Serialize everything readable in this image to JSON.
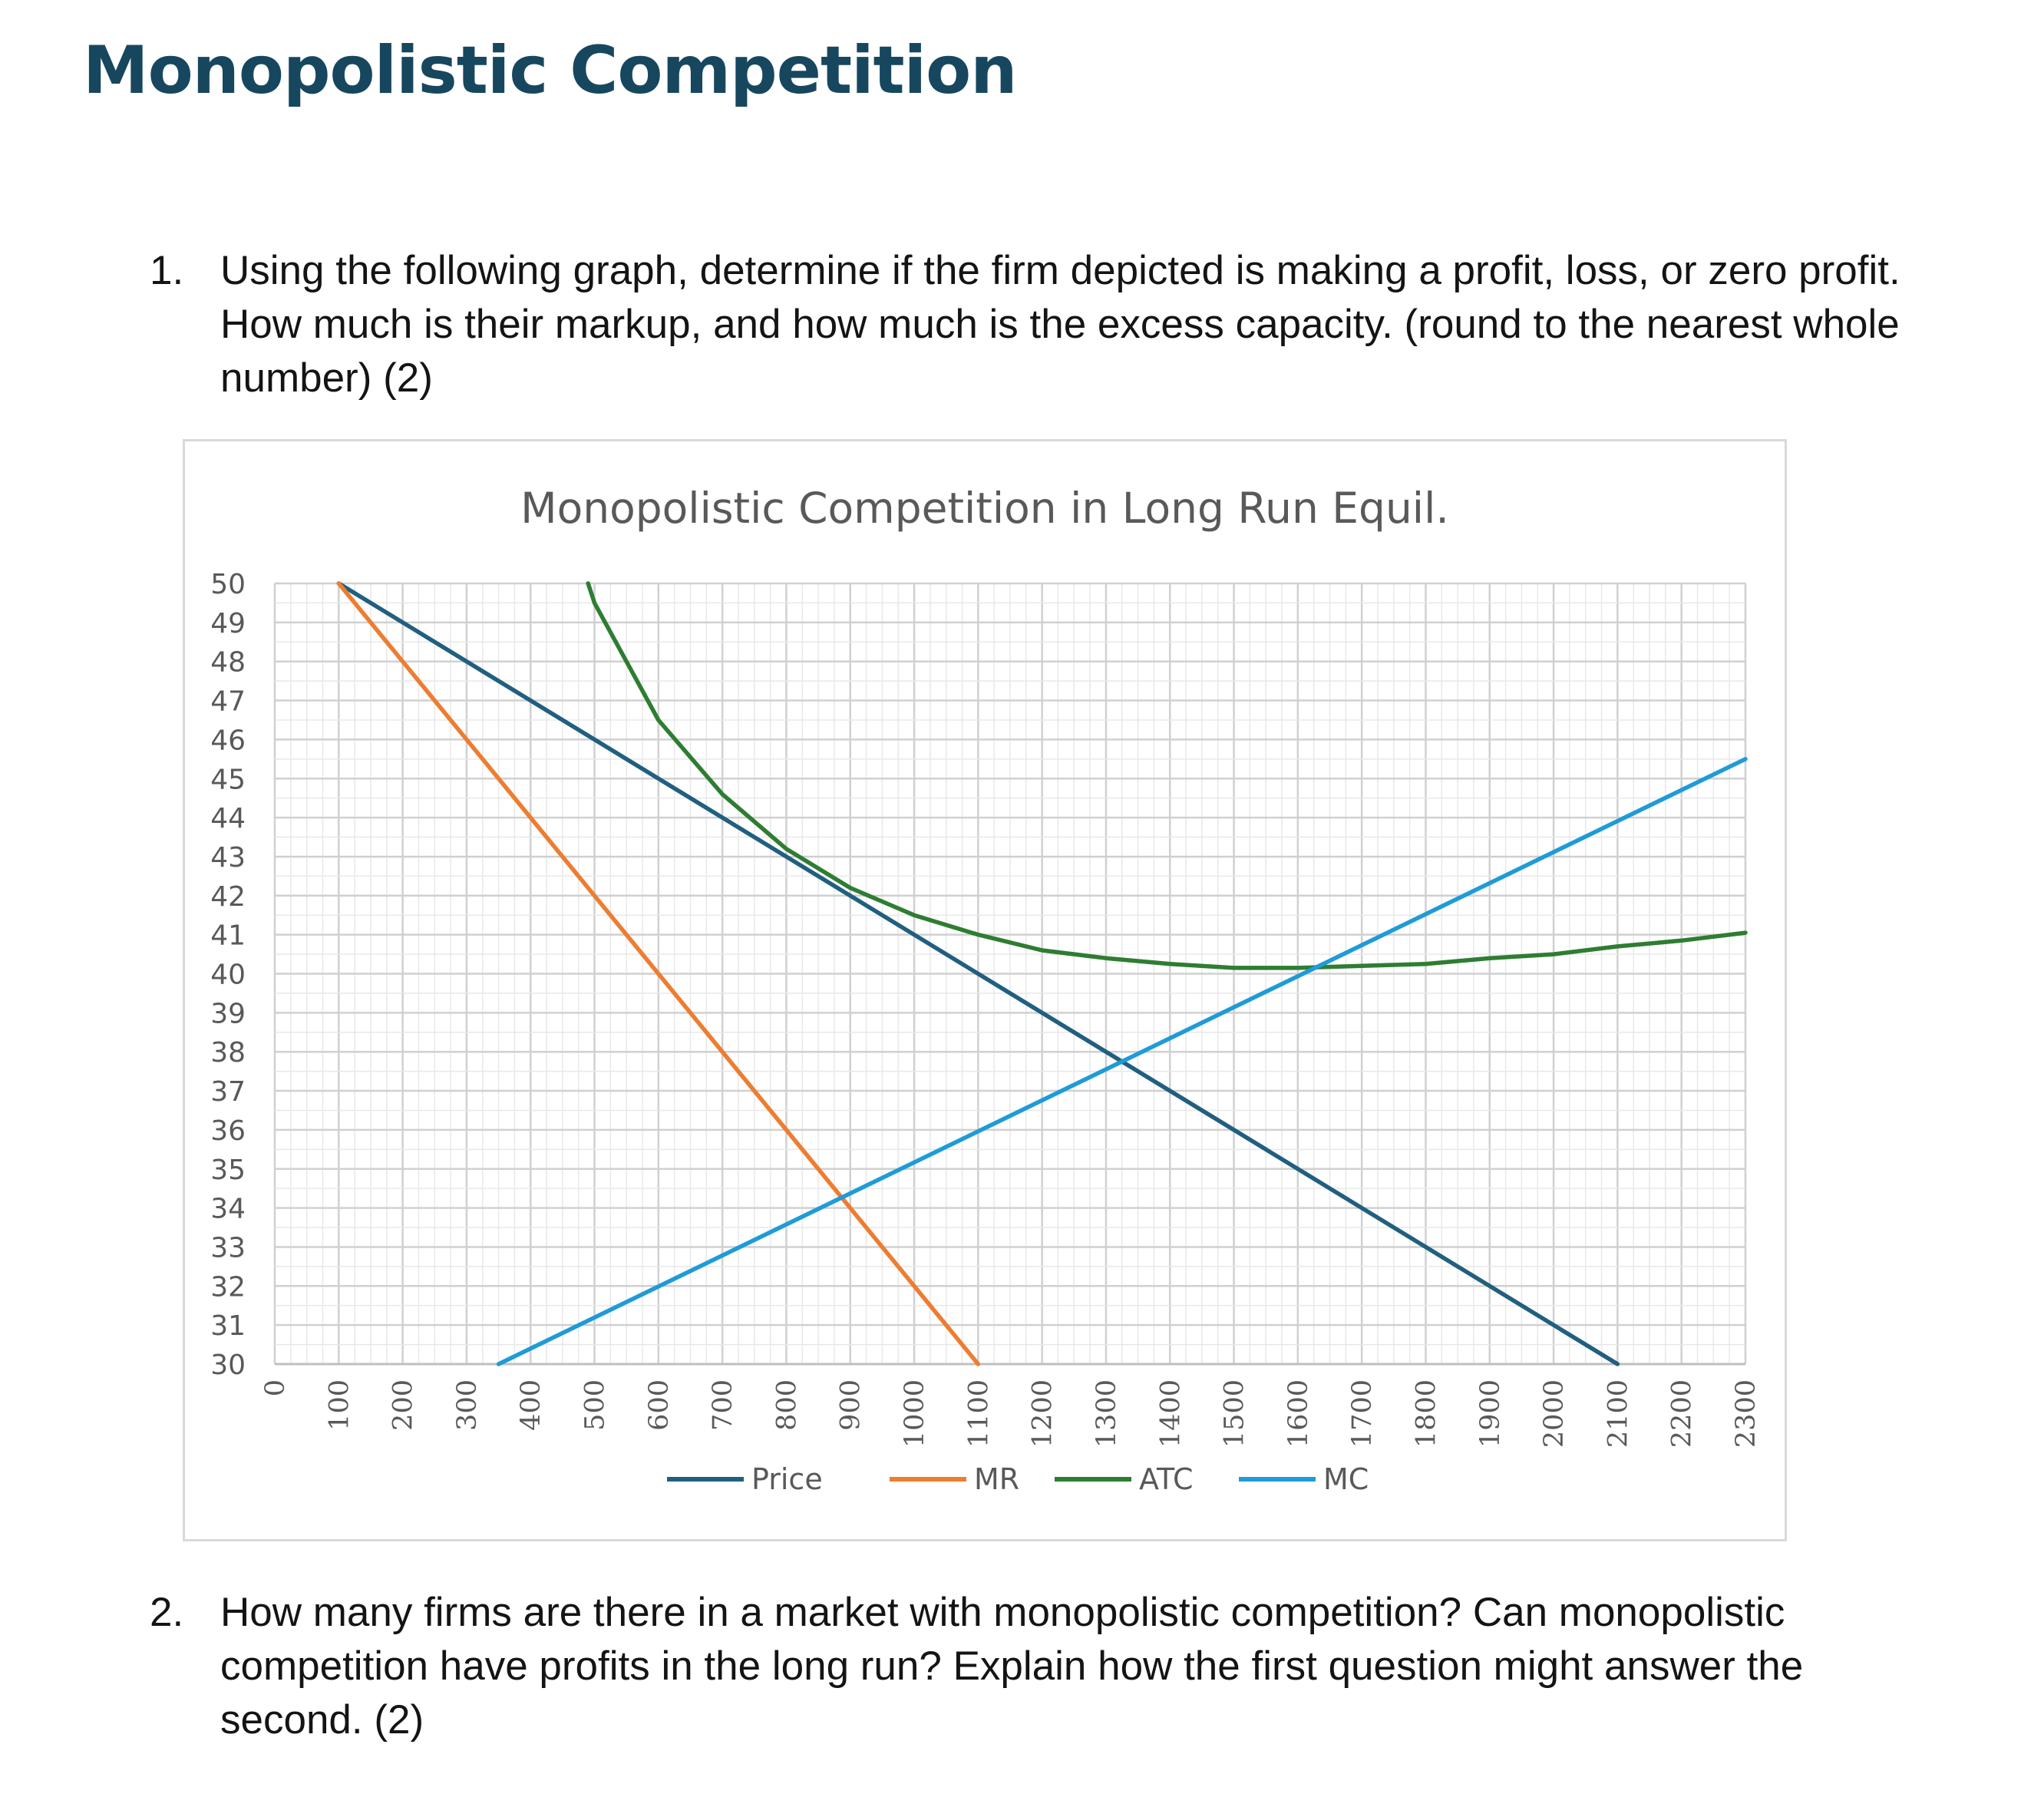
{
  "document": {
    "heading": "Monopolistic Competition",
    "q1_number": "1.",
    "q1_text": "Using the following graph, determine if the firm depicted is making a profit, loss, or zero profit. How much is their markup, and how much is the excess capacity. (round to the nearest whole number) (2)",
    "q2_number": "2.",
    "q2_text": "How many firms are there in a market with monopolistic competition? Can monopolistic competition have profits in the long run? Explain how the first question might answer the second. (2)"
  },
  "chart_data": {
    "type": "line",
    "title": "Monopolistic Competition in Long Run Equil.",
    "xlabel": "",
    "ylabel": "",
    "xlim": [
      0,
      2300
    ],
    "ylim": [
      30,
      50
    ],
    "x_ticks": [
      "0",
      "100",
      "200",
      "300",
      "400",
      "500",
      "600",
      "700",
      "800",
      "900",
      "1000",
      "1100",
      "1200",
      "1300",
      "1400",
      "1500",
      "1600",
      "1700",
      "1800",
      "1900",
      "2000",
      "2100",
      "2200",
      "2300"
    ],
    "y_ticks": [
      "30",
      "31",
      "32",
      "33",
      "34",
      "35",
      "36",
      "37",
      "38",
      "39",
      "40",
      "41",
      "42",
      "43",
      "44",
      "45",
      "46",
      "47",
      "48",
      "49",
      "50"
    ],
    "grid": true,
    "legend_position": "bottom",
    "series": [
      {
        "name": "Price",
        "color": "#215f80",
        "points": [
          [
            100,
            50
          ],
          [
            2100,
            30
          ]
        ]
      },
      {
        "name": "MR",
        "color": "#ed7d31",
        "points": [
          [
            100,
            50
          ],
          [
            1100,
            30
          ]
        ]
      },
      {
        "name": "ATC",
        "color": "#2e7d32",
        "points": [
          [
            490,
            50
          ],
          [
            500,
            49.5
          ],
          [
            600,
            46.5
          ],
          [
            700,
            44.6
          ],
          [
            800,
            43.2
          ],
          [
            900,
            42.2
          ],
          [
            1000,
            41.5
          ],
          [
            1100,
            41.0
          ],
          [
            1200,
            40.6
          ],
          [
            1300,
            40.4
          ],
          [
            1400,
            40.25
          ],
          [
            1500,
            40.15
          ],
          [
            1600,
            40.15
          ],
          [
            1700,
            40.2
          ],
          [
            1800,
            40.25
          ],
          [
            1900,
            40.4
          ],
          [
            2000,
            40.5
          ],
          [
            2100,
            40.7
          ],
          [
            2200,
            40.85
          ],
          [
            2300,
            41.05
          ]
        ]
      },
      {
        "name": "MC",
        "color": "#1f9bd7",
        "points": [
          [
            350,
            30
          ],
          [
            2300,
            45.5
          ]
        ]
      }
    ]
  }
}
